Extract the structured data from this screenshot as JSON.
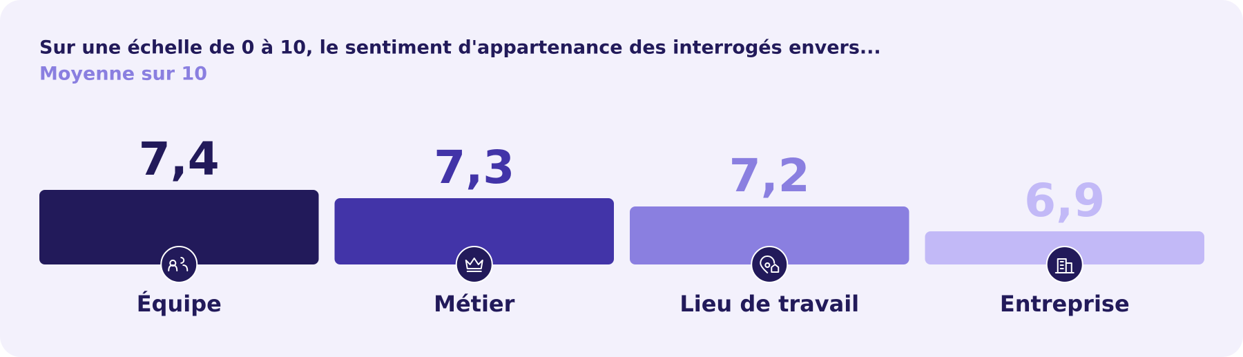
{
  "chart_data": {
    "type": "bar",
    "title": "Sur une échelle de 0 à 10, le sentiment d'appartenance des interrogés envers...",
    "subtitle": "Moyenne sur 10",
    "categories": [
      "Équipe",
      "Métier",
      "Lieu de travail",
      "Entreprise"
    ],
    "values": [
      7.4,
      7.3,
      7.2,
      6.9
    ],
    "value_labels": [
      "7,4",
      "7,3",
      "7,2",
      "6,9"
    ],
    "colors": [
      "#221a5a",
      "#4234a8",
      "#8a7fe0",
      "#c2b9f7"
    ],
    "ylim": [
      6.5,
      8
    ]
  }
}
